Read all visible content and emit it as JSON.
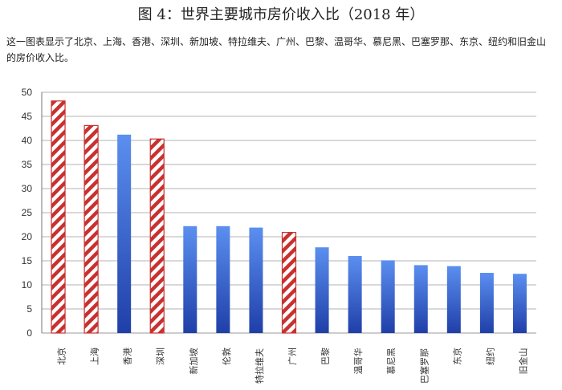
{
  "title": "图 4：世界主要城市房价收入比（2018 年）",
  "caption": "这一图表显示了北京、上海、香港、深圳、新加坡、特拉维夫、广州、巴黎、温哥华、慕尼黑、巴塞罗那、东京、纽约和旧金山的房价收入比。",
  "chart_data": {
    "type": "bar",
    "title": "图 4：世界主要城市房价收入比（2018 年）",
    "xlabel": "",
    "ylabel": "",
    "ylim": [
      0,
      50
    ],
    "yticks": [
      0,
      5,
      10,
      15,
      20,
      25,
      30,
      35,
      40,
      45,
      50
    ],
    "grid": true,
    "legend": "none",
    "categories": [
      "北京",
      "上海",
      "香港",
      "深圳",
      "新加坡",
      "伦敦",
      "特拉维夫",
      "广州",
      "巴黎",
      "温哥华",
      "慕尼黑",
      "巴塞罗那",
      "东京",
      "纽约",
      "旧金山"
    ],
    "values": [
      48.2,
      43.1,
      41.2,
      40.3,
      22.2,
      22.2,
      21.9,
      20.9,
      17.8,
      16.0,
      15.1,
      14.1,
      13.9,
      12.5,
      12.3
    ],
    "styles": [
      "hatched",
      "hatched",
      "solid",
      "hatched",
      "solid",
      "solid",
      "solid",
      "hatched",
      "solid",
      "solid",
      "solid",
      "solid",
      "solid",
      "solid",
      "solid"
    ],
    "colors": {
      "hatch_red": "#c8312f",
      "blue_top": "#5b8ff0",
      "blue_bottom": "#1f3fa8",
      "grid": "#9a9a9a"
    }
  }
}
